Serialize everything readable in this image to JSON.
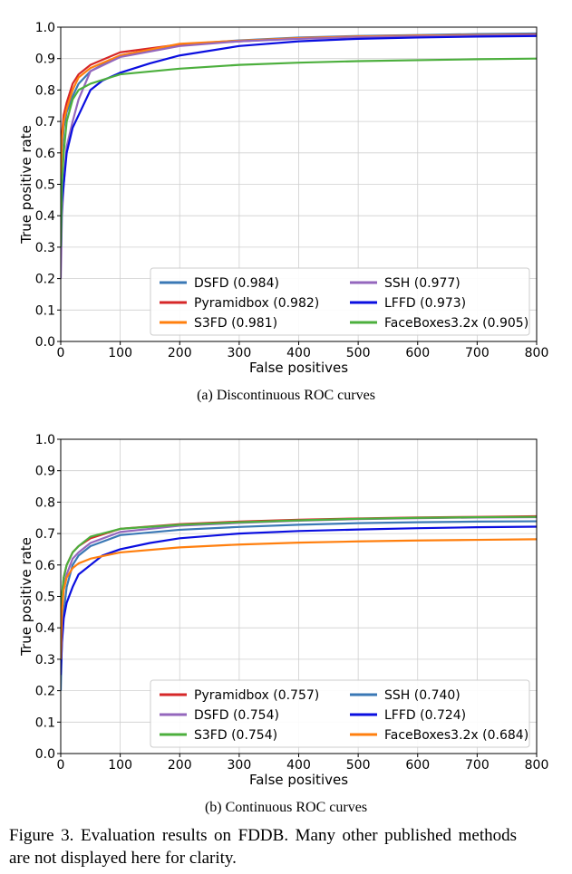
{
  "figure_caption": "Figure 3. Evaluation results on FDDB. Many other published methods are not displayed here for clarity.",
  "chart_data": [
    {
      "type": "line",
      "caption": "(a) Discontinuous ROC curves",
      "xlabel": "False positives",
      "ylabel": "True positive rate",
      "xlim": [
        0,
        800
      ],
      "ylim": [
        0,
        1.0
      ],
      "xticks": [
        0,
        100,
        200,
        300,
        400,
        500,
        600,
        700,
        800
      ],
      "yticks": [
        0.0,
        0.1,
        0.2,
        0.3,
        0.4,
        0.5,
        0.6,
        0.7,
        0.8,
        0.9,
        1.0
      ],
      "grid": true,
      "legend_position": "lower-right",
      "legend_columns": 2,
      "series": [
        {
          "name": "DSFD (0.984)",
          "color": "#3a78b5",
          "x": [
            0,
            2,
            5,
            10,
            20,
            30,
            50,
            100,
            200,
            300,
            400,
            500,
            600,
            700,
            800
          ],
          "y": [
            0.45,
            0.6,
            0.68,
            0.73,
            0.78,
            0.82,
            0.86,
            0.91,
            0.945,
            0.958,
            0.967,
            0.972,
            0.975,
            0.978,
            0.98
          ]
        },
        {
          "name": "Pyramidbox (0.982)",
          "color": "#d62728",
          "x": [
            0,
            2,
            5,
            10,
            20,
            30,
            50,
            100,
            200,
            300,
            400,
            500,
            600,
            700,
            800
          ],
          "y": [
            0.55,
            0.66,
            0.72,
            0.76,
            0.82,
            0.85,
            0.88,
            0.92,
            0.945,
            0.955,
            0.965,
            0.97,
            0.973,
            0.975,
            0.977
          ]
        },
        {
          "name": "S3FD (0.981)",
          "color": "#ff7f0e",
          "x": [
            0,
            2,
            5,
            10,
            20,
            30,
            50,
            100,
            200,
            300,
            400,
            500,
            600,
            700,
            800
          ],
          "y": [
            0.5,
            0.64,
            0.7,
            0.74,
            0.8,
            0.84,
            0.87,
            0.91,
            0.947,
            0.957,
            0.965,
            0.97,
            0.973,
            0.975,
            0.976
          ]
        },
        {
          "name": "SSH (0.977)",
          "color": "#9467bd",
          "x": [
            0,
            2,
            5,
            10,
            20,
            30,
            50,
            100,
            200,
            300,
            400,
            500,
            600,
            700,
            800
          ],
          "y": [
            0.2,
            0.4,
            0.5,
            0.62,
            0.7,
            0.77,
            0.86,
            0.905,
            0.94,
            0.955,
            0.963,
            0.968,
            0.971,
            0.973,
            0.975
          ]
        },
        {
          "name": "LFFD (0.973)",
          "color": "#0a0ee0",
          "x": [
            0,
            2,
            5,
            10,
            20,
            30,
            50,
            70,
            100,
            150,
            200,
            300,
            400,
            500,
            600,
            700,
            800
          ],
          "y": [
            0.3,
            0.44,
            0.5,
            0.6,
            0.68,
            0.72,
            0.8,
            0.83,
            0.855,
            0.885,
            0.91,
            0.94,
            0.955,
            0.963,
            0.967,
            0.97,
            0.972
          ]
        },
        {
          "name": "FaceBoxes3.2x (0.905)",
          "color": "#4caf3d",
          "x": [
            0,
            2,
            5,
            10,
            20,
            30,
            50,
            100,
            200,
            300,
            400,
            500,
            600,
            700,
            800
          ],
          "y": [
            0.3,
            0.5,
            0.6,
            0.7,
            0.77,
            0.8,
            0.82,
            0.85,
            0.868,
            0.88,
            0.887,
            0.892,
            0.895,
            0.898,
            0.9
          ]
        }
      ]
    },
    {
      "type": "line",
      "caption": "(b) Continuous ROC curves",
      "xlabel": "False positives",
      "ylabel": "True positive rate",
      "xlim": [
        0,
        800
      ],
      "ylim": [
        0,
        1.0
      ],
      "xticks": [
        0,
        100,
        200,
        300,
        400,
        500,
        600,
        700,
        800
      ],
      "yticks": [
        0.0,
        0.1,
        0.2,
        0.3,
        0.4,
        0.5,
        0.6,
        0.7,
        0.8,
        0.9,
        1.0
      ],
      "grid": true,
      "legend_position": "lower-right",
      "legend_columns": 2,
      "series": [
        {
          "name": "Pyramidbox (0.757)",
          "color": "#d62728",
          "x": [
            0,
            2,
            5,
            10,
            20,
            30,
            50,
            100,
            200,
            300,
            400,
            500,
            600,
            700,
            800
          ],
          "y": [
            0.35,
            0.5,
            0.56,
            0.6,
            0.64,
            0.66,
            0.685,
            0.715,
            0.73,
            0.738,
            0.744,
            0.748,
            0.751,
            0.753,
            0.755
          ]
        },
        {
          "name": "DSFD (0.754)",
          "color": "#9467bd",
          "x": [
            0,
            2,
            5,
            10,
            20,
            30,
            50,
            100,
            200,
            300,
            400,
            500,
            600,
            700,
            800
          ],
          "y": [
            0.33,
            0.48,
            0.53,
            0.57,
            0.62,
            0.64,
            0.67,
            0.705,
            0.725,
            0.734,
            0.741,
            0.746,
            0.749,
            0.751,
            0.752
          ]
        },
        {
          "name": "S3FD (0.754)",
          "color": "#4caf3d",
          "x": [
            0,
            2,
            5,
            10,
            20,
            30,
            50,
            100,
            200,
            300,
            400,
            500,
            600,
            700,
            800
          ],
          "y": [
            0.34,
            0.5,
            0.56,
            0.6,
            0.64,
            0.66,
            0.69,
            0.715,
            0.728,
            0.736,
            0.742,
            0.747,
            0.75,
            0.752,
            0.753
          ]
        },
        {
          "name": "SSH (0.740)",
          "color": "#3a78b5",
          "x": [
            0,
            2,
            5,
            10,
            20,
            30,
            50,
            100,
            200,
            300,
            400,
            500,
            600,
            700,
            800
          ],
          "y": [
            0.2,
            0.36,
            0.45,
            0.53,
            0.6,
            0.63,
            0.66,
            0.695,
            0.712,
            0.721,
            0.728,
            0.733,
            0.736,
            0.738,
            0.739
          ]
        },
        {
          "name": "LFFD (0.724)",
          "color": "#0a0ee0",
          "x": [
            0,
            2,
            5,
            10,
            20,
            30,
            50,
            70,
            100,
            150,
            200,
            300,
            400,
            500,
            600,
            700,
            800
          ],
          "y": [
            0.25,
            0.35,
            0.43,
            0.48,
            0.53,
            0.57,
            0.6,
            0.63,
            0.65,
            0.67,
            0.685,
            0.7,
            0.708,
            0.713,
            0.717,
            0.72,
            0.722
          ]
        },
        {
          "name": "FaceBoxes3.2x (0.684)",
          "color": "#ff7f0e",
          "x": [
            0,
            2,
            5,
            10,
            20,
            30,
            50,
            100,
            200,
            300,
            400,
            500,
            600,
            700,
            800
          ],
          "y": [
            0.3,
            0.45,
            0.52,
            0.56,
            0.59,
            0.605,
            0.62,
            0.64,
            0.656,
            0.665,
            0.671,
            0.675,
            0.678,
            0.68,
            0.682
          ]
        }
      ]
    }
  ]
}
